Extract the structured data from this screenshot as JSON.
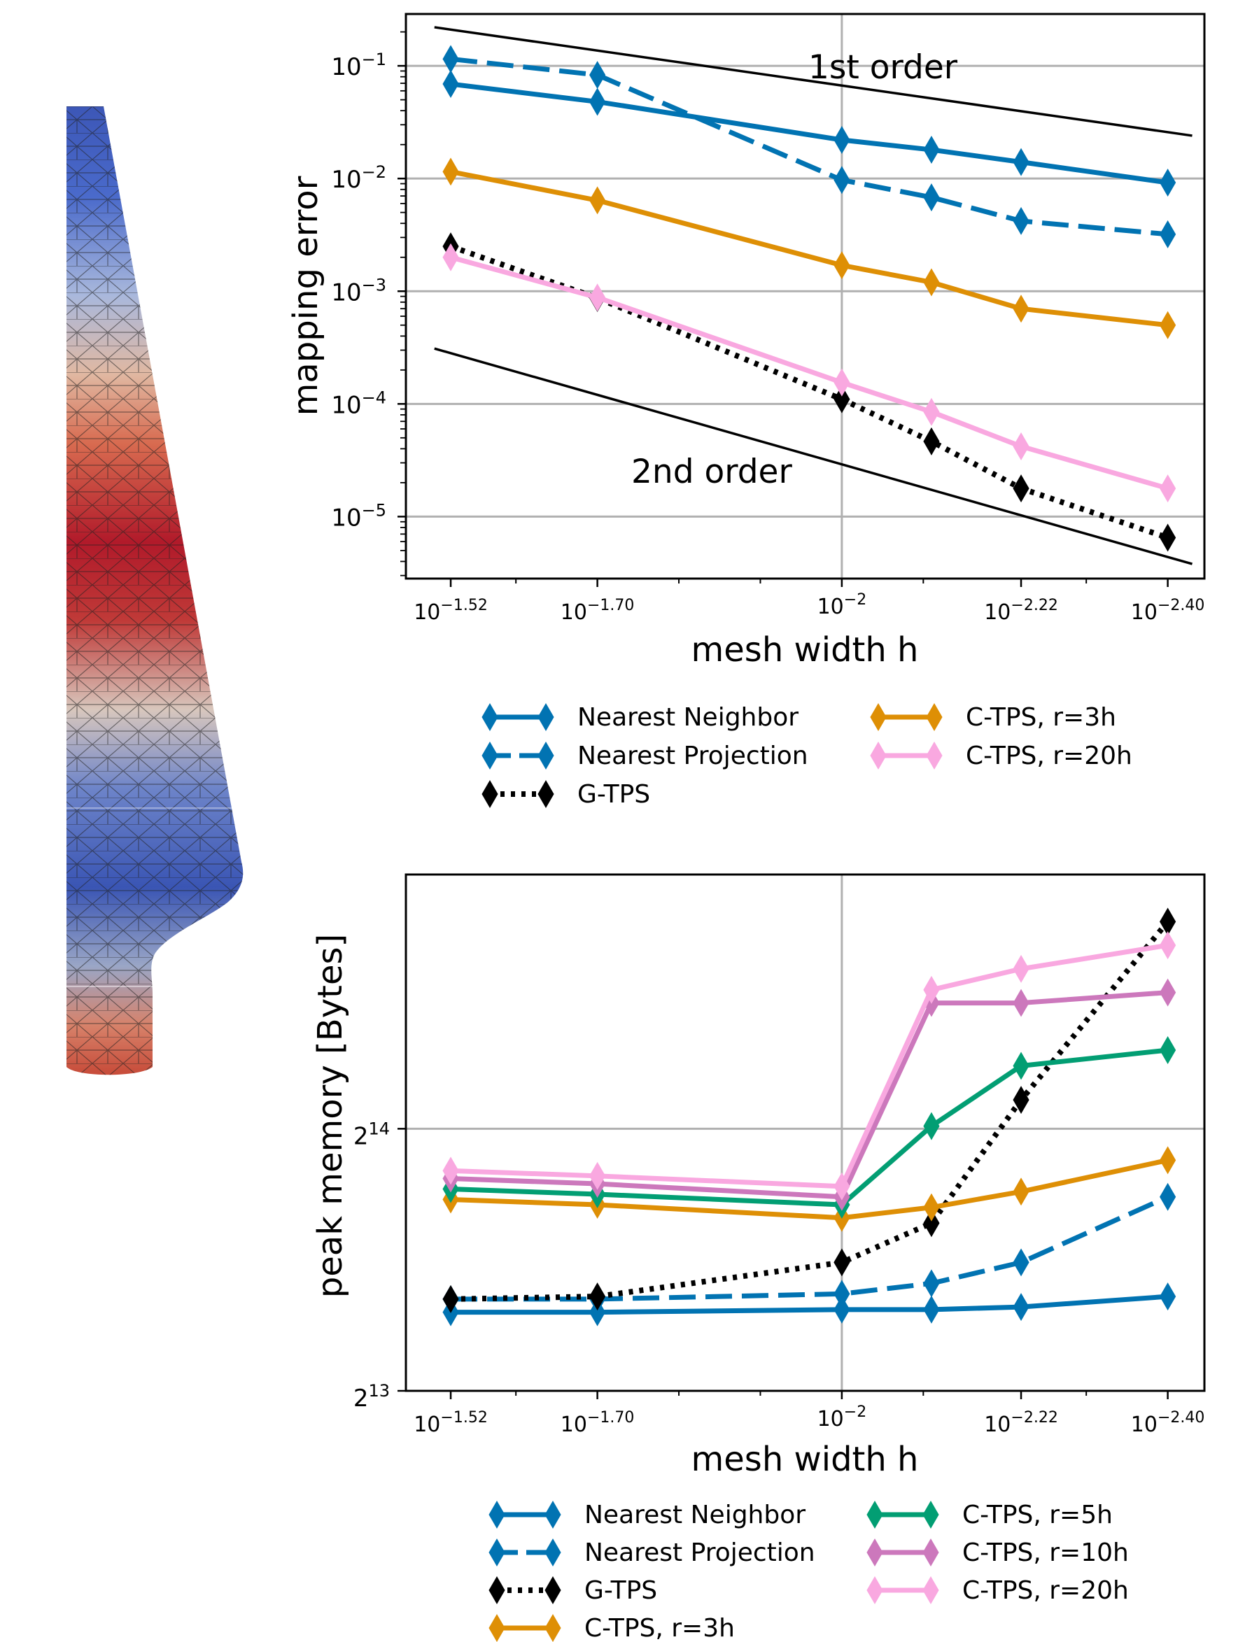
{
  "chart_data": [
    {
      "type": "line",
      "log_x": true,
      "log_y": true,
      "xlabel": "mesh width h",
      "ylabel": "mapping error",
      "x": [
        -1.52,
        -1.7,
        -2.0,
        -2.11,
        -2.22,
        -2.4
      ],
      "x_ticks": [
        {
          "base": "10",
          "exp": "−1.52"
        },
        {
          "base": "10",
          "exp": "−1.70"
        },
        {
          "base": "10",
          "exp": "−2"
        },
        {
          "base": "10",
          "exp": "−2.22"
        },
        {
          "base": "10",
          "exp": "−2.40"
        }
      ],
      "y_ticks": [
        {
          "base": "10",
          "exp": "−1"
        },
        {
          "base": "10",
          "exp": "−2"
        },
        {
          "base": "10",
          "exp": "−3"
        },
        {
          "base": "10",
          "exp": "−4"
        },
        {
          "base": "10",
          "exp": "−5"
        }
      ],
      "ylim_log10": [
        -5.55,
        -0.54
      ],
      "grid": true,
      "legend_placement": "below",
      "annotations": [
        "1st order",
        "2nd order"
      ],
      "series": [
        {
          "name": "Nearest Neighbor",
          "color": "#0173b2",
          "style": "solid",
          "values": [
            0.069,
            0.048,
            0.022,
            0.018,
            0.014,
            0.0092
          ]
        },
        {
          "name": "Nearest Projection",
          "color": "#0173b2",
          "style": "dashed",
          "values": [
            0.115,
            0.083,
            0.0097,
            0.0068,
            0.0042,
            0.0032
          ]
        },
        {
          "name": "G-TPS",
          "color": "#000000",
          "style": "dotted",
          "values": [
            0.0025,
            0.00087,
            0.00011,
            4.65e-05,
            1.78e-05,
            6.5e-06
          ]
        },
        {
          "name": "C-TPS, r=3h",
          "color": "#de8f05",
          "style": "solid",
          "values": [
            0.0115,
            0.0064,
            0.0017,
            0.0012,
            0.0007,
            0.0005
          ]
        },
        {
          "name": "C-TPS, r=20h",
          "color": "#f9a8e0",
          "style": "solid",
          "values": [
            0.002,
            0.00088,
            0.000155,
            8.5e-05,
            4.2e-05,
            1.78e-05
          ]
        }
      ],
      "reference_lines": [
        {
          "name": "1st order",
          "x": [
            -1.5,
            -2.43
          ],
          "y": [
            0.22,
            0.024
          ]
        },
        {
          "name": "2nd order",
          "x": [
            -1.5,
            -2.43
          ],
          "y": [
            0.00031,
            3.8e-06
          ]
        }
      ]
    },
    {
      "type": "line",
      "log_x": true,
      "log_y": true,
      "xlabel": "mesh width h",
      "ylabel": "peak memory [Bytes]",
      "x": [
        -1.52,
        -1.7,
        -2.0,
        -2.11,
        -2.22,
        -2.4
      ],
      "x_ticks": [
        {
          "base": "10",
          "exp": "−1.52"
        },
        {
          "base": "10",
          "exp": "−1.70"
        },
        {
          "base": "10",
          "exp": "−2"
        },
        {
          "base": "10",
          "exp": "−2.22"
        },
        {
          "base": "10",
          "exp": "−2.40"
        }
      ],
      "y_ticks": [
        {
          "base": "2",
          "exp": "14"
        },
        {
          "base": "2",
          "exp": "13"
        }
      ],
      "ylim_log2": [
        13,
        14.97
      ],
      "grid": true,
      "legend_placement": "below",
      "series": [
        {
          "name": "Nearest Neighbor",
          "color": "#0173b2",
          "style": "solid",
          "values": [
            13.3,
            13.3,
            13.31,
            13.31,
            13.32,
            13.36
          ]
        },
        {
          "name": "Nearest Projection",
          "color": "#0173b2",
          "style": "dashed",
          "values": [
            13.35,
            13.35,
            13.37,
            13.41,
            13.49,
            13.74
          ]
        },
        {
          "name": "G-TPS",
          "color": "#000000",
          "style": "dotted",
          "values": [
            13.35,
            13.36,
            13.49,
            13.64,
            14.11,
            14.79
          ]
        },
        {
          "name": "C-TPS, r=3h",
          "color": "#de8f05",
          "style": "solid",
          "values": [
            13.73,
            13.71,
            13.66,
            13.7,
            13.76,
            13.88
          ]
        },
        {
          "name": "C-TPS, r=5h",
          "color": "#029e73",
          "style": "solid",
          "values": [
            13.77,
            13.75,
            13.71,
            14.01,
            14.24,
            14.3
          ]
        },
        {
          "name": "C-TPS, r=10h",
          "color": "#cc78bc",
          "style": "solid",
          "values": [
            13.81,
            13.79,
            13.74,
            14.48,
            14.48,
            14.52
          ]
        },
        {
          "name": "C-TPS, r=20h",
          "color": "#f9a8e0",
          "style": "solid",
          "values": [
            13.84,
            13.82,
            13.78,
            14.53,
            14.61,
            14.7
          ]
        }
      ]
    }
  ],
  "image_panel": {
    "colormap_low": "#3b4cc0",
    "colormap_mid": "#dddddd",
    "colormap_high": "#b40426"
  }
}
